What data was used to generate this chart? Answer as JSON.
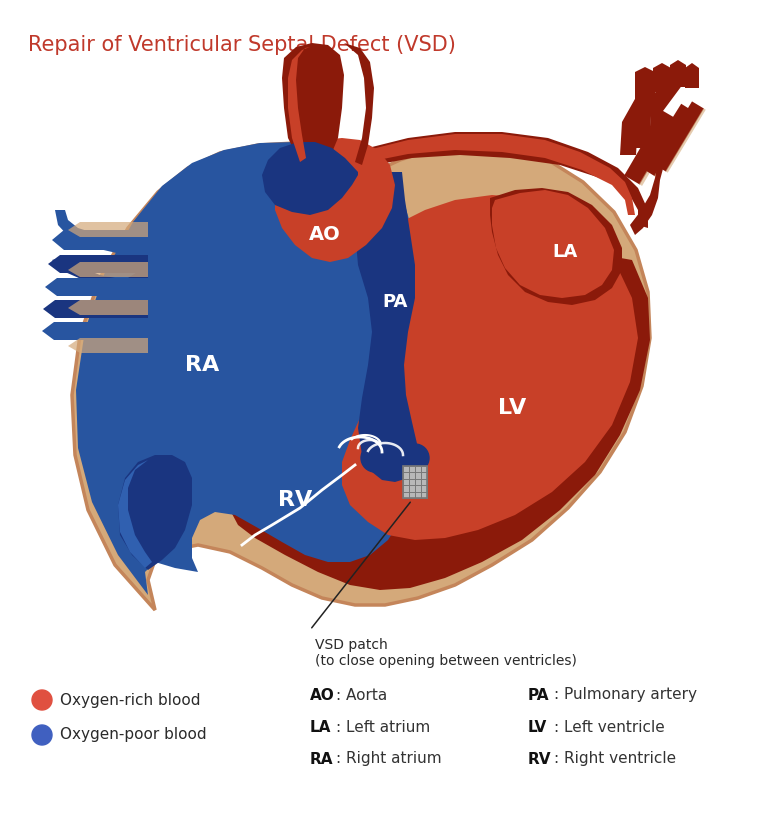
{
  "title": "Repair of Ventricular Septal Defect (VSD)",
  "title_color": "#c0392b",
  "title_fontsize": 15,
  "bg_color": "#ffffff",
  "tan_color": "#d4a97a",
  "tan_dark": "#c4855a",
  "blue_main": "#2855a0",
  "blue_dark": "#1a3580",
  "blue_mid": "#3060b0",
  "red_main": "#b83020",
  "red_dark": "#8b1a0a",
  "red_mid": "#c84028",
  "red_bright": "#cc3322",
  "legend_rich_color": "#e05040",
  "legend_poor_color": "#4060c0",
  "legend_items": [
    {
      "color": "#e05040",
      "text": "Oxygen-rich blood"
    },
    {
      "color": "#4060c0",
      "text": "Oxygen-poor blood"
    }
  ],
  "abbrev_left": [
    {
      "bold": "AO",
      "rest": ": Aorta"
    },
    {
      "bold": "LA",
      "rest": ": Left atrium"
    },
    {
      "bold": "RA",
      "rest": ": Right atrium"
    }
  ],
  "abbrev_right": [
    {
      "bold": "PA",
      "rest": ": Pulmonary artery"
    },
    {
      "bold": "LV",
      "rest": ": Left ventricle"
    },
    {
      "bold": "RV",
      "rest": ": Right ventricle"
    }
  ],
  "vsd_patch_label": "VSD patch\n(to close opening between ventricles)"
}
